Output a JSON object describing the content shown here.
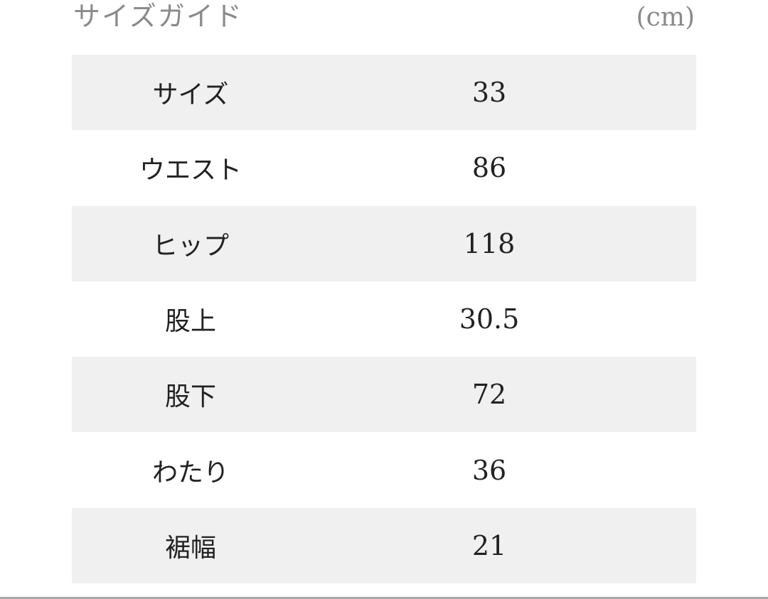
{
  "header": {
    "title": "サイズガイド",
    "unit": "(cm)"
  },
  "rows": [
    {
      "label": "サイズ",
      "value": "33"
    },
    {
      "label": "ウエスト",
      "value": "86"
    },
    {
      "label": "ヒップ",
      "value": "118"
    },
    {
      "label": "股上",
      "value": "30.5"
    },
    {
      "label": "股下",
      "value": "72"
    },
    {
      "label": "わたり",
      "value": "36"
    },
    {
      "label": "裾幅",
      "value": "21"
    }
  ],
  "colors": {
    "shaded_row": "#f0f0f0",
    "text": "#222222",
    "title": "#8a8a8a"
  }
}
